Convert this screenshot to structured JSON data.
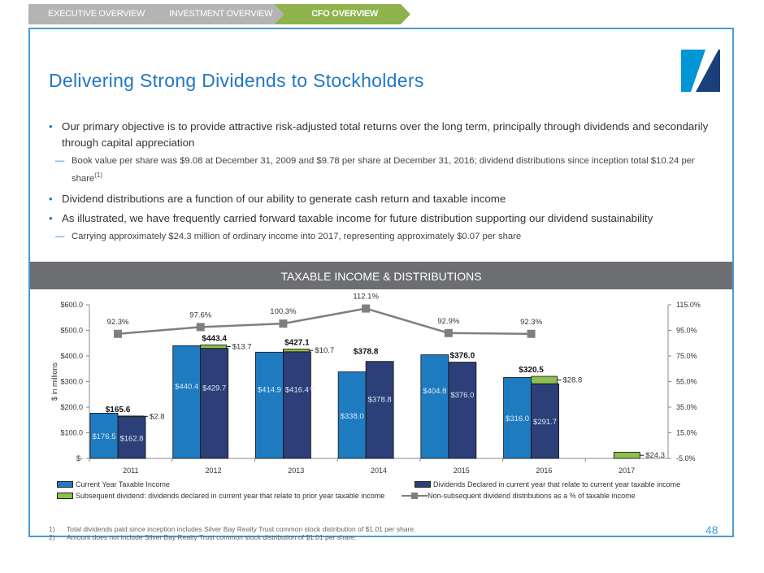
{
  "nav": {
    "tabs": [
      {
        "label": "EXECUTIVE OVERVIEW",
        "active": false
      },
      {
        "label": "INVESTMENT OVERVIEW",
        "active": false
      },
      {
        "label": "CFO OVERVIEW",
        "active": true
      }
    ]
  },
  "title": "Delivering Strong Dividends to Stockholders",
  "bullets": {
    "b1": "Our primary objective is to provide attractive risk-adjusted total returns over the long term, principally through dividends and secondarily through capital appreciation",
    "b1_sub": "Book value per share was $9.08 at December 31, 2009 and $9.78 per share at December 31, 2016; dividend distributions since inception total $10.24 per share",
    "b1_sub_sup": "(1)",
    "b2": "Dividend distributions are a function of our ability to generate cash return and taxable income",
    "b3": "As illustrated, we have frequently carried forward taxable income for future distribution supporting our dividend sustainability",
    "b3_sub": "Carrying approximately $24.3 million of ordinary income into 2017, representing approximately $0.07 per share"
  },
  "banner": "TAXABLE INCOME & DISTRIBUTIONS",
  "chart_data": {
    "type": "bar",
    "categories": [
      "2011",
      "2012",
      "2013",
      "2014",
      "2015",
      "2016",
      "2017"
    ],
    "ylabel": "$ in millions",
    "ylim": [
      0,
      600
    ],
    "y_ticks": [
      "$-",
      "$100.0",
      "$200.0",
      "$300.0",
      "$400.0",
      "$500.0",
      "$600.0"
    ],
    "y2lim": [
      -5,
      115
    ],
    "y2_ticks": [
      "-5.0%",
      "15.0%",
      "35.0%",
      "55.0%",
      "75.0%",
      "95.0%",
      "115.0%"
    ],
    "series": [
      {
        "name": "Current Year Taxable Income",
        "color": "#1f7bc0",
        "values": [
          176.5,
          440.4,
          414.9,
          338.0,
          404.8,
          316.0,
          null
        ],
        "labels": [
          "$176.5",
          "$440.4",
          "$414.9",
          "$338.0",
          "$404.8",
          "$316.0",
          ""
        ]
      },
      {
        "name": "Dividends Declared in current year that relate to current year taxable income",
        "color": "#2c3f78",
        "values": [
          162.8,
          429.7,
          416.4,
          378.8,
          376.0,
          291.7,
          null
        ],
        "labels": [
          "$162.8",
          "$429.7",
          "$416.4",
          "$378.8",
          "$376.0",
          "$291.7",
          ""
        ],
        "label_sup_2013": "(2)"
      },
      {
        "name": "Subsequent dividend: dividends declared in current year that relate to prior year taxable income",
        "color": "#8fbf4d",
        "values": [
          2.8,
          13.7,
          10.7,
          null,
          null,
          28.8,
          24.3
        ],
        "labels": [
          "$2.8",
          "$13.7",
          "$10.7",
          "",
          "",
          "$28.8",
          "$24.3"
        ]
      },
      {
        "name": "Non-subsequent dividend distributions as a % of taxable income",
        "color": "#7f7f7f",
        "type": "line",
        "axis": "right",
        "values": [
          92.3,
          97.6,
          100.3,
          112.1,
          92.9,
          92.3,
          null
        ],
        "labels": [
          "92.3%",
          "97.6%",
          "100.3%",
          "112.1%",
          "92.9%",
          "92.3%",
          ""
        ]
      }
    ],
    "totals": [
      "$165.6",
      "$443.4",
      "$427.1",
      "$378.8",
      "$376.0",
      "$320.5",
      ""
    ]
  },
  "footnotes": [
    {
      "n": "1)",
      "text": "Total dividends paid since inception includes Silver Bay Realty Trust common stock distribution of $1.01 per share."
    },
    {
      "n": "2)",
      "text": "Amount does not include Silver Bay Realty Trust common stock distribution of $1.01 per share."
    }
  ],
  "page_number": "48"
}
